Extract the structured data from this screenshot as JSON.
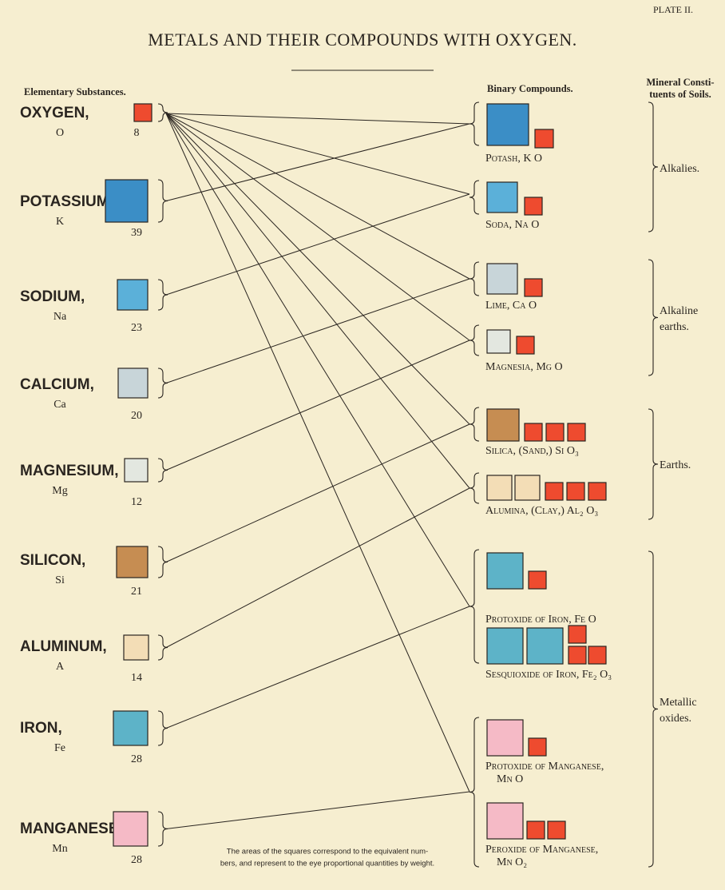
{
  "plate": "PLATE II.",
  "title": "METALS AND THEIR COMPOUNDS WITH OXYGEN.",
  "left_header": "Elementary Substances.",
  "middle_header": "Binary Compounds.",
  "right_header": [
    "Mineral Consti-",
    "tuents of Soils."
  ],
  "elements": [
    {
      "name": "OXYGEN,",
      "symbol": "O",
      "weight": 8
    },
    {
      "name": "POTASSIUM,",
      "symbol": "K",
      "weight": 39
    },
    {
      "name": "SODIUM,",
      "symbol": "Na",
      "weight": 23
    },
    {
      "name": "CALCIUM,",
      "symbol": "Ca",
      "weight": 20
    },
    {
      "name": "MAGNESIUM,",
      "symbol": "Mg",
      "weight": 12
    },
    {
      "name": "SILICON,",
      "symbol": "Si",
      "weight": 21
    },
    {
      "name": "ALUMINUM,",
      "symbol": "A",
      "weight": 14
    },
    {
      "name": "IRON,",
      "symbol": "Fe",
      "weight": 28
    },
    {
      "name": "MANGANESE,",
      "symbol": "Mn",
      "weight": 28
    }
  ],
  "compounds": [
    {
      "lines": [
        "Potash, K O"
      ]
    },
    {
      "lines": [
        "Soda, Na O"
      ]
    },
    {
      "lines": [
        "Lime, Ca O"
      ]
    },
    {
      "lines": [
        "Magnesia, Mg O"
      ]
    },
    {
      "lines": [
        "Silica, (Sand,) Si O₃"
      ]
    },
    {
      "lines": [
        "Alumina, (Clay,) Al₂ O₃"
      ]
    },
    {
      "lines": [
        "Protoxide of Iron, Fe O"
      ]
    },
    {
      "lines": [
        "Sesquioxide of Iron, Fe₂ O₃"
      ]
    },
    {
      "lines": [
        "Protoxide of Manganese,",
        "Mn O"
      ]
    },
    {
      "lines": [
        "Peroxide of Manganese,",
        "Mn O₂"
      ]
    }
  ],
  "groups": [
    {
      "lines": [
        "Alkalies."
      ]
    },
    {
      "lines": [
        "Alkaline",
        "earths."
      ]
    },
    {
      "lines": [
        "Earths."
      ]
    },
    {
      "lines": [
        "Metallic",
        "oxides."
      ]
    }
  ],
  "note": [
    "The areas of the squares correspond to the equivalent num-",
    "bers, and represent to the eye proportional quantities by weight."
  ]
}
